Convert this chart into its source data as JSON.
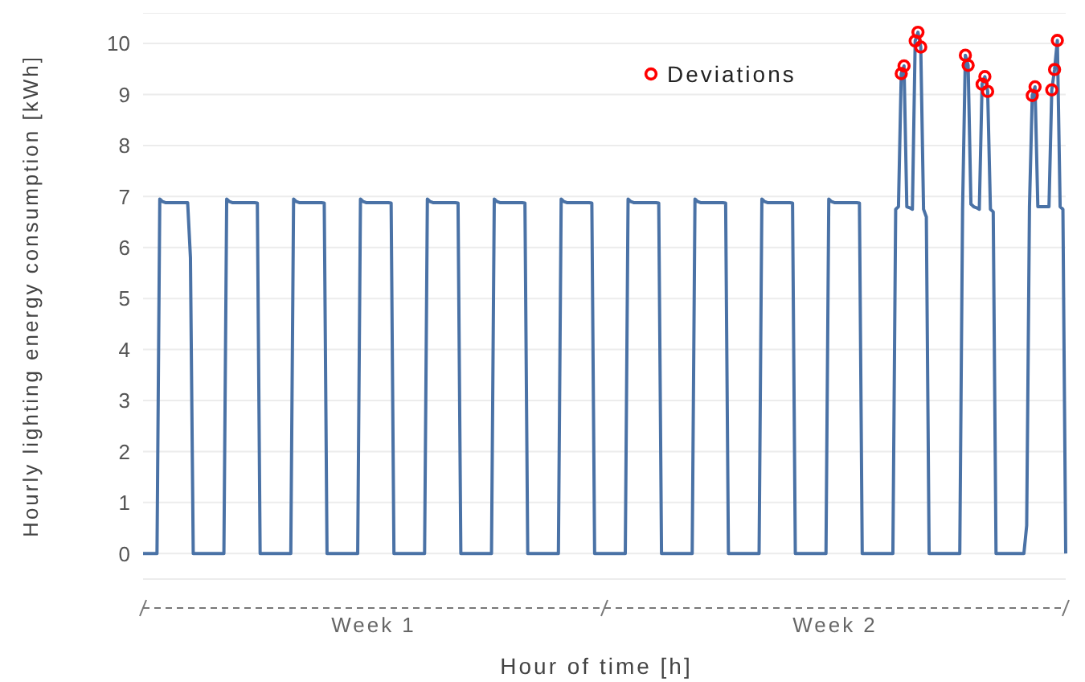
{
  "chart_data": {
    "type": "line",
    "xlabel": "Hour of time [h]",
    "ylabel": "Hourly lighting energy consumption [kWh]",
    "annotations": [
      "Week 1",
      "Week 2"
    ],
    "ylim": [
      -0.5,
      10.6
    ],
    "yticks": [
      0,
      1,
      2,
      3,
      4,
      5,
      6,
      7,
      8,
      9,
      10
    ],
    "grid": "y",
    "legend": "top",
    "line_style": "solid",
    "categories": [
      null,
      null,
      null,
      null,
      null,
      null,
      null,
      null,
      null,
      null,
      null,
      null,
      null,
      null,
      null,
      null,
      null,
      null,
      null,
      null,
      null,
      null,
      null,
      null,
      null,
      null,
      null,
      null,
      null,
      null,
      null,
      null,
      null,
      null,
      null,
      null,
      null,
      null,
      null,
      null,
      null,
      null,
      null,
      null,
      null,
      null,
      null,
      null,
      null,
      null,
      null,
      null,
      null,
      null,
      null,
      null,
      null,
      null,
      null,
      null,
      null,
      null,
      null,
      null,
      null,
      null,
      null,
      null,
      null,
      null,
      null,
      null,
      null,
      null,
      null,
      null,
      null,
      null,
      null,
      null,
      null,
      null,
      null,
      null,
      null,
      null,
      null,
      null,
      null,
      null,
      null,
      null,
      null,
      null,
      null,
      null,
      null,
      null,
      null,
      null,
      null,
      null,
      null,
      null,
      null,
      null,
      null,
      null,
      null,
      null,
      null,
      null,
      null,
      null,
      null,
      null,
      null,
      null,
      null,
      null,
      null,
      null,
      null,
      null,
      null,
      null,
      null,
      null,
      null,
      null,
      null,
      null,
      null,
      null,
      null,
      null,
      null,
      null,
      null,
      null,
      null,
      null,
      null,
      null,
      null,
      null,
      null,
      null,
      null,
      null,
      null,
      null,
      null,
      null,
      null,
      null,
      null,
      null,
      null,
      null,
      null,
      null,
      null,
      null,
      null,
      null,
      null,
      null,
      null,
      null,
      null,
      null,
      null,
      null,
      null,
      null,
      null,
      null,
      null,
      null,
      null,
      null,
      null,
      null,
      null,
      null,
      null,
      null,
      null,
      null,
      null,
      null,
      null,
      null,
      null,
      null,
      null,
      null,
      null,
      null,
      null,
      null,
      null,
      null,
      null,
      null,
      null,
      null,
      null,
      null,
      null,
      null,
      null,
      null,
      null,
      null,
      null,
      null,
      null,
      null,
      null,
      null,
      null,
      null,
      null,
      null,
      null,
      null,
      null,
      null,
      null,
      null,
      null,
      null,
      null,
      null,
      null,
      null,
      null,
      null,
      null,
      null,
      null,
      null,
      null,
      null,
      null,
      null,
      null,
      null,
      null,
      null,
      null,
      null,
      null,
      null,
      null,
      null,
      null,
      null,
      null,
      null,
      null,
      null,
      null,
      null,
      null,
      null,
      null,
      null,
      null,
      null,
      null,
      null,
      null,
      null,
      null,
      null,
      null,
      null,
      null,
      null,
      null,
      null,
      null,
      null,
      null,
      null,
      null,
      null,
      null,
      null,
      null,
      null,
      null,
      null,
      null,
      null,
      null,
      null,
      null,
      null,
      null,
      null,
      null,
      null,
      null,
      null,
      null,
      null,
      null,
      null,
      null,
      null,
      null,
      null,
      null,
      null,
      null,
      null,
      null,
      null,
      null,
      null,
      null,
      null,
      null,
      null,
      null,
      null,
      null,
      null
    ],
    "series": [
      {
        "color": "#4a72a6",
        "values": [
          0,
          0,
          0,
          0,
          0,
          0,
          6.95,
          6.9,
          6.88,
          6.88,
          6.88,
          6.88,
          6.88,
          6.88,
          6.88,
          6.88,
          6.88,
          5.8,
          0,
          0,
          0,
          0,
          0,
          0,
          0,
          0,
          0,
          0,
          0,
          0,
          6.95,
          6.9,
          6.88,
          6.88,
          6.88,
          6.88,
          6.88,
          6.88,
          6.88,
          6.88,
          6.88,
          6.87,
          0,
          0,
          0,
          0,
          0,
          0,
          0,
          0,
          0,
          0,
          0,
          0,
          6.95,
          6.9,
          6.88,
          6.88,
          6.88,
          6.88,
          6.88,
          6.88,
          6.88,
          6.88,
          6.88,
          6.87,
          0,
          0,
          0,
          0,
          0,
          0,
          0,
          0,
          0,
          0,
          0,
          0,
          6.95,
          6.9,
          6.88,
          6.88,
          6.88,
          6.88,
          6.88,
          6.88,
          6.88,
          6.88,
          6.88,
          6.87,
          0,
          0,
          0,
          0,
          0,
          0,
          0,
          0,
          0,
          0,
          0,
          0,
          6.95,
          6.9,
          6.88,
          6.88,
          6.88,
          6.88,
          6.88,
          6.88,
          6.88,
          6.88,
          6.88,
          6.87,
          0,
          0,
          0,
          0,
          0,
          0,
          0,
          0,
          0,
          0,
          0,
          0,
          6.95,
          6.9,
          6.88,
          6.88,
          6.88,
          6.88,
          6.88,
          6.88,
          6.88,
          6.88,
          6.88,
          6.87,
          0,
          0,
          0,
          0,
          0,
          0,
          0,
          0,
          0,
          0,
          0,
          0,
          6.95,
          6.9,
          6.88,
          6.88,
          6.88,
          6.88,
          6.88,
          6.88,
          6.88,
          6.88,
          6.88,
          6.87,
          0,
          0,
          0,
          0,
          0,
          0,
          0,
          0,
          0,
          0,
          0,
          0,
          6.95,
          6.9,
          6.88,
          6.88,
          6.88,
          6.88,
          6.88,
          6.88,
          6.88,
          6.88,
          6.88,
          6.87,
          0,
          0,
          0,
          0,
          0,
          0,
          0,
          0,
          0,
          0,
          0,
          0,
          6.95,
          6.9,
          6.88,
          6.88,
          6.88,
          6.88,
          6.88,
          6.88,
          6.88,
          6.88,
          6.88,
          6.87,
          0,
          0,
          0,
          0,
          0,
          0,
          0,
          0,
          0,
          0,
          0,
          0,
          6.95,
          6.9,
          6.88,
          6.88,
          6.88,
          6.88,
          6.88,
          6.88,
          6.88,
          6.88,
          6.88,
          6.87,
          0,
          0,
          0,
          0,
          0,
          0,
          0,
          0,
          0,
          0,
          0,
          0,
          6.95,
          6.9,
          6.88,
          6.88,
          6.88,
          6.88,
          6.88,
          6.88,
          6.88,
          6.88,
          6.88,
          6.87,
          0,
          0,
          0,
          0,
          0,
          0,
          0,
          0,
          0,
          0,
          0,
          0,
          6.75,
          6.8,
          9.41,
          9.56,
          6.8,
          6.78,
          6.75,
          10.05,
          10.22,
          9.93,
          6.75,
          6.6,
          0,
          0,
          0,
          0,
          0,
          0,
          0,
          0,
          0,
          0,
          0,
          0,
          6.75,
          9.77,
          9.57,
          6.85,
          6.8,
          6.78,
          6.75,
          9.2,
          9.35,
          9.06,
          6.75,
          6.7,
          0,
          0,
          0,
          0,
          0,
          0,
          0,
          0,
          0,
          0,
          0,
          0.55,
          6.8,
          8.98,
          9.15,
          6.8,
          6.8,
          6.8,
          6.8,
          6.8,
          9.09,
          9.49,
          10.06,
          6.8,
          6.75,
          0
        ]
      },
      {
        "type": "scatter",
        "name": "Deviations",
        "color": "#ff0000",
        "marker": "circle",
        "values": [
          null,
          null,
          null,
          null,
          null,
          null,
          null,
          null,
          null,
          null,
          null,
          null,
          null,
          null,
          null,
          null,
          null,
          null,
          null,
          null,
          null,
          null,
          null,
          null,
          null,
          null,
          null,
          null,
          null,
          null,
          null,
          null,
          null,
          null,
          null,
          null,
          null,
          null,
          null,
          null,
          null,
          null,
          null,
          null,
          null,
          null,
          null,
          null,
          null,
          null,
          null,
          null,
          null,
          null,
          null,
          null,
          null,
          null,
          null,
          null,
          null,
          null,
          null,
          null,
          null,
          null,
          null,
          null,
          null,
          null,
          null,
          null,
          null,
          null,
          null,
          null,
          null,
          null,
          null,
          null,
          null,
          null,
          null,
          null,
          null,
          null,
          null,
          null,
          null,
          null,
          null,
          null,
          null,
          null,
          null,
          null,
          null,
          null,
          null,
          null,
          null,
          null,
          null,
          null,
          null,
          null,
          null,
          null,
          null,
          null,
          null,
          null,
          null,
          null,
          null,
          null,
          null,
          null,
          null,
          null,
          null,
          null,
          null,
          null,
          null,
          null,
          null,
          null,
          null,
          null,
          null,
          null,
          null,
          null,
          null,
          null,
          null,
          null,
          null,
          null,
          null,
          null,
          null,
          null,
          null,
          null,
          null,
          null,
          null,
          null,
          null,
          null,
          null,
          null,
          null,
          null,
          null,
          null,
          null,
          null,
          null,
          null,
          null,
          null,
          null,
          null,
          null,
          null,
          null,
          null,
          null,
          null,
          null,
          null,
          null,
          null,
          null,
          null,
          null,
          null,
          null,
          null,
          null,
          null,
          null,
          null,
          null,
          null,
          null,
          null,
          null,
          null,
          null,
          null,
          null,
          null,
          null,
          null,
          null,
          null,
          null,
          null,
          null,
          null,
          null,
          null,
          null,
          null,
          null,
          null,
          null,
          null,
          null,
          null,
          null,
          null,
          null,
          null,
          null,
          null,
          null,
          null,
          null,
          null,
          null,
          null,
          null,
          null,
          null,
          null,
          null,
          null,
          null,
          null,
          null,
          null,
          null,
          null,
          null,
          null,
          null,
          null,
          null,
          null,
          null,
          null,
          null,
          null,
          null,
          null,
          null,
          null,
          null,
          null,
          null,
          null,
          null,
          null,
          null,
          null,
          null,
          null,
          null,
          null,
          null,
          null,
          null,
          null,
          null,
          null,
          null,
          null,
          9.41,
          9.56,
          null,
          null,
          null,
          10.05,
          10.22,
          9.93,
          null,
          null,
          null,
          null,
          null,
          null,
          null,
          null,
          null,
          null,
          null,
          null,
          null,
          null,
          null,
          9.77,
          9.57,
          null,
          null,
          null,
          null,
          9.2,
          9.35,
          9.06,
          null,
          null,
          null,
          null,
          null,
          null,
          null,
          null,
          null,
          null,
          null,
          null,
          null,
          null,
          null,
          8.98,
          9.15,
          null,
          null,
          null,
          null,
          null,
          9.09,
          9.49,
          10.06,
          null,
          null,
          null
        ]
      }
    ]
  }
}
